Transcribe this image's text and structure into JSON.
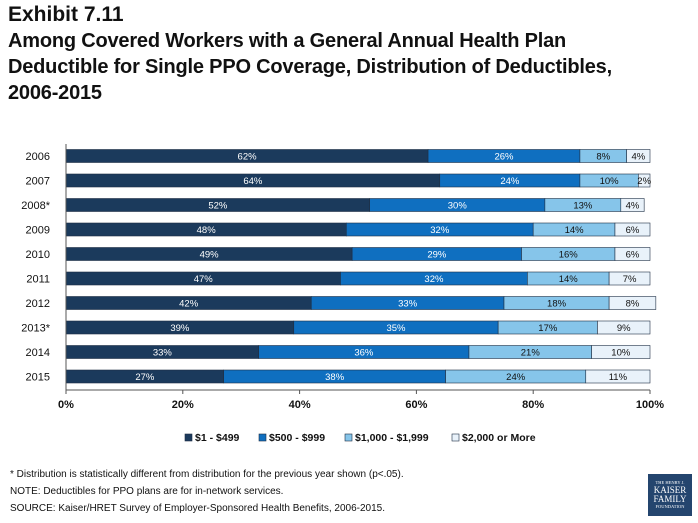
{
  "header": {
    "exhibit": "Exhibit 7.11",
    "title_lines": [
      "Among Covered Workers with a General Annual Health Plan",
      "Deductible for Single PPO Coverage, Distribution of Deductibles,",
      "2006-2015"
    ]
  },
  "chart_data": {
    "type": "bar",
    "orientation": "horizontal",
    "stacked": "percent",
    "categories": [
      "2006",
      "2007",
      "2008*",
      "2009",
      "2010",
      "2011",
      "2012",
      "2013*",
      "2014",
      "2015"
    ],
    "series": [
      {
        "name": "$1 - $499",
        "color": "#1b3a5c",
        "values": [
          62,
          64,
          52,
          48,
          49,
          47,
          42,
          39,
          33,
          27
        ]
      },
      {
        "name": "$500 - $999",
        "color": "#0f6fc0",
        "values": [
          26,
          24,
          30,
          32,
          29,
          32,
          33,
          35,
          36,
          38
        ]
      },
      {
        "name": "$1,000 - $1,999",
        "color": "#86c5ea",
        "values": [
          8,
          10,
          13,
          14,
          16,
          14,
          18,
          17,
          21,
          24
        ]
      },
      {
        "name": "$2,000 or More",
        "color": "#e9f2fa",
        "values": [
          4,
          2,
          4,
          6,
          6,
          7,
          8,
          9,
          10,
          11
        ]
      }
    ],
    "data_labels": [
      [
        "62%",
        "64%",
        "52%",
        "48%",
        "49%",
        "47%",
        "42%",
        "39%",
        "33%",
        "27%"
      ],
      [
        "26%",
        "24%",
        "30%",
        "32%",
        "29%",
        "32%",
        "33%",
        "35%",
        "36%",
        "38%"
      ],
      [
        "8%",
        "10%",
        "13%",
        "14%",
        "16%",
        "14%",
        "18%",
        "17%",
        "21%",
        "24%"
      ],
      [
        "4%",
        "2%",
        "4%",
        "6%",
        "6%",
        "7%",
        "8%",
        "9%",
        "10%",
        "11%"
      ]
    ],
    "xlim": [
      0,
      100
    ],
    "xticks": [
      "0%",
      "20%",
      "40%",
      "60%",
      "80%",
      "100%"
    ],
    "grid": false,
    "legend": "bottom"
  },
  "notes": {
    "line1": "* Distribution is statistically different from distribution for the previous year shown (p<.05).",
    "line2": "NOTE: Deductibles for PPO plans are for in-network services.",
    "line3": "SOURCE: Kaiser/HRET Survey of Employer-Sponsored Health Benefits, 2006-2015."
  },
  "logo": {
    "line1": "THE HENRY J.",
    "line2": "KAISER",
    "line3": "FAMILY",
    "line4": "FOUNDATION"
  }
}
